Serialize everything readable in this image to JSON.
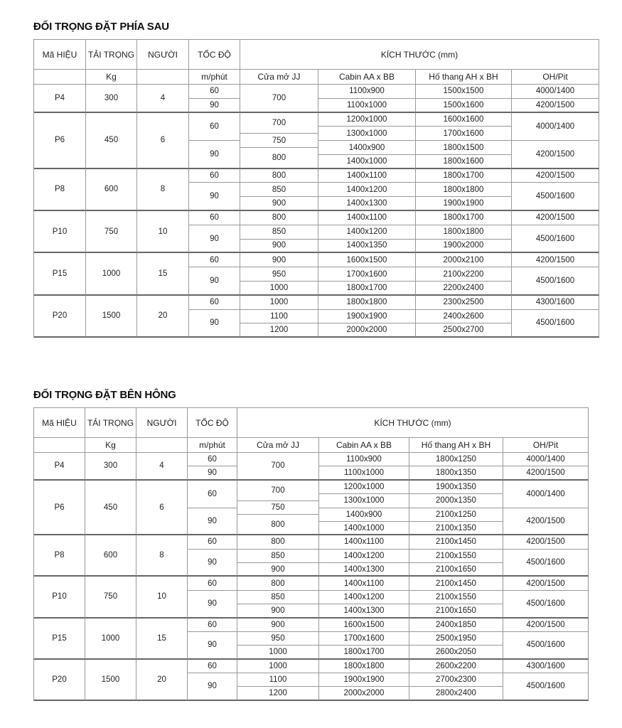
{
  "tables": [
    {
      "title": "ĐỐI TRỌNG ĐẶT PHÍA SAU",
      "headers": {
        "model": "Mã HIỆU",
        "load": "TẢI TRỌNG",
        "persons": "NGƯỜI",
        "speed": "TỐC ĐỘ",
        "dimensions": "KÍCH THƯỚC (mm)",
        "load_unit": "Kg",
        "speed_unit": "m/phút",
        "door": "Cửa mở JJ",
        "cabin": "Cabin AA x BB",
        "shaft": "Hố thang AH x BH",
        "ohpit": "OH/Pit"
      },
      "models": [
        {
          "model": "P4",
          "load": "300",
          "persons": "4",
          "speeds": [
            {
              "value": "60",
              "rows": 1
            },
            {
              "value": "90",
              "rows": 1
            }
          ],
          "doors": [
            {
              "value": "700",
              "rows": 2
            }
          ],
          "cabins": [
            "1100x900",
            "1100x1000"
          ],
          "shafts": [
            "1500x1500",
            "1500x1600"
          ],
          "ohpit": [
            {
              "value": "4000/1400",
              "rows": 1
            },
            {
              "value": "4200/1500",
              "rows": 1
            }
          ]
        },
        {
          "model": "P6",
          "load": "450",
          "persons": "6",
          "speeds": [
            {
              "value": "60",
              "rows": 2
            },
            {
              "value": "90",
              "rows": 2
            }
          ],
          "doors": [
            {
              "value": "700",
              "rows": 1.5
            },
            {
              "value": "750",
              "rows": 1
            },
            {
              "value": "800",
              "rows": 1.5
            }
          ],
          "cabins": [
            "1200x1000",
            "1300x1000",
            "1400x900",
            "1400x1000"
          ],
          "shafts": [
            "1600x1600",
            "1700x1600",
            "1800x1500",
            "1800x1600"
          ],
          "ohpit": [
            {
              "value": "4000/1400",
              "rows": 2
            },
            {
              "value": "4200/1500",
              "rows": 2
            }
          ]
        },
        {
          "model": "P8",
          "load": "600",
          "persons": "8",
          "speeds": [
            {
              "value": "60",
              "rows": 1
            },
            {
              "value": "90",
              "rows": 2
            }
          ],
          "doors": [
            {
              "value": "800",
              "rows": 1
            },
            {
              "value": "850",
              "rows": 1
            },
            {
              "value": "900",
              "rows": 1
            }
          ],
          "cabins": [
            "1400x1100",
            "1400x1200",
            "1400x1300"
          ],
          "shafts": [
            "1800x1700",
            "1800x1800",
            "1900x1900"
          ],
          "ohpit": [
            {
              "value": "4200/1500",
              "rows": 1
            },
            {
              "value": "4500/1600",
              "rows": 2
            }
          ]
        },
        {
          "model": "P10",
          "load": "750",
          "persons": "10",
          "speeds": [
            {
              "value": "60",
              "rows": 1
            },
            {
              "value": "90",
              "rows": 2
            }
          ],
          "doors": [
            {
              "value": "800",
              "rows": 1
            },
            {
              "value": "850",
              "rows": 1
            },
            {
              "value": "900",
              "rows": 1
            }
          ],
          "cabins": [
            "1400x1100",
            "1400x1200",
            "1400x1350"
          ],
          "shafts": [
            "1800x1700",
            "1800x1800",
            "1900x2000"
          ],
          "ohpit": [
            {
              "value": "4200/1500",
              "rows": 1
            },
            {
              "value": "4500/1600",
              "rows": 2
            }
          ]
        },
        {
          "model": "P15",
          "load": "1000",
          "persons": "15",
          "speeds": [
            {
              "value": "60",
              "rows": 1
            },
            {
              "value": "90",
              "rows": 2
            }
          ],
          "doors": [
            {
              "value": "900",
              "rows": 1
            },
            {
              "value": "950",
              "rows": 1
            },
            {
              "value": "1000",
              "rows": 1
            }
          ],
          "cabins": [
            "1600x1500",
            "1700x1600",
            "1800x1700"
          ],
          "shafts": [
            "2000x2100",
            "2100x2200",
            "2200x2400"
          ],
          "ohpit": [
            {
              "value": "4200/1500",
              "rows": 1
            },
            {
              "value": "4500/1600",
              "rows": 2
            }
          ]
        },
        {
          "model": "P20",
          "load": "1500",
          "persons": "20",
          "speeds": [
            {
              "value": "60",
              "rows": 1
            },
            {
              "value": "90",
              "rows": 2
            }
          ],
          "doors": [
            {
              "value": "1000",
              "rows": 1
            },
            {
              "value": "1100",
              "rows": 1
            },
            {
              "value": "1200",
              "rows": 1
            }
          ],
          "cabins": [
            "1800x1800",
            "1900x1900",
            "2000x2000"
          ],
          "shafts": [
            "2300x2500",
            "2400x2600",
            "2500x2700"
          ],
          "ohpit": [
            {
              "value": "4300/1600",
              "rows": 1
            },
            {
              "value": "4500/1600",
              "rows": 2
            }
          ]
        }
      ]
    },
    {
      "title": "ĐỐI TRỌNG ĐẶT BÊN HÔNG",
      "headers": {
        "model": "Mã HIỆU",
        "load": "TẢI TRỌNG",
        "persons": "NGƯỜI",
        "speed": "TỐC ĐỘ",
        "dimensions": "KÍCH THƯỚC (mm)",
        "load_unit": "Kg",
        "speed_unit": "m/phút",
        "door": "Cửa mở JJ",
        "cabin": "Cabin AA x BB",
        "shaft": "Hố thang AH x BH",
        "ohpit": "OH/Pit"
      },
      "models": [
        {
          "model": "P4",
          "load": "300",
          "persons": "4",
          "speeds": [
            {
              "value": "60",
              "rows": 1
            },
            {
              "value": "90",
              "rows": 1
            }
          ],
          "doors": [
            {
              "value": "700",
              "rows": 2
            }
          ],
          "cabins": [
            "1100x900",
            "1100x1000"
          ],
          "shafts": [
            "1800x1250",
            "1800x1350"
          ],
          "ohpit": [
            {
              "value": "4000/1400",
              "rows": 1
            },
            {
              "value": "4200/1500",
              "rows": 1
            }
          ]
        },
        {
          "model": "P6",
          "load": "450",
          "persons": "6",
          "speeds": [
            {
              "value": "60",
              "rows": 2
            },
            {
              "value": "90",
              "rows": 2
            }
          ],
          "doors": [
            {
              "value": "700",
              "rows": 1.5
            },
            {
              "value": "750",
              "rows": 1
            },
            {
              "value": "800",
              "rows": 1.5
            }
          ],
          "cabins": [
            "1200x1000",
            "1300x1000",
            "1400x900",
            "1400x1000"
          ],
          "shafts": [
            "1900x1350",
            "2000x1350",
            "2100x1250",
            "2100x1350"
          ],
          "ohpit": [
            {
              "value": "4000/1400",
              "rows": 2
            },
            {
              "value": "4200/1500",
              "rows": 2
            }
          ]
        },
        {
          "model": "P8",
          "load": "600",
          "persons": "8",
          "speeds": [
            {
              "value": "60",
              "rows": 1
            },
            {
              "value": "90",
              "rows": 2
            }
          ],
          "doors": [
            {
              "value": "800",
              "rows": 1
            },
            {
              "value": "850",
              "rows": 1
            },
            {
              "value": "900",
              "rows": 1
            }
          ],
          "cabins": [
            "1400x1100",
            "1400x1200",
            "1400x1300"
          ],
          "shafts": [
            "2100x1450",
            "2100x1550",
            "2100x1650"
          ],
          "ohpit": [
            {
              "value": "4200/1500",
              "rows": 1
            },
            {
              "value": "4500/1600",
              "rows": 2
            }
          ]
        },
        {
          "model": "P10",
          "load": "750",
          "persons": "10",
          "speeds": [
            {
              "value": "60",
              "rows": 1
            },
            {
              "value": "90",
              "rows": 2
            }
          ],
          "doors": [
            {
              "value": "800",
              "rows": 1
            },
            {
              "value": "850",
              "rows": 1
            },
            {
              "value": "900",
              "rows": 1
            }
          ],
          "cabins": [
            "1400x1100",
            "1400x1200",
            "1400x1300"
          ],
          "shafts": [
            "2100x1450",
            "2100x1550",
            "2100x1650"
          ],
          "ohpit": [
            {
              "value": "4200/1500",
              "rows": 1
            },
            {
              "value": "4500/1600",
              "rows": 2
            }
          ]
        },
        {
          "model": "P15",
          "load": "1000",
          "persons": "15",
          "speeds": [
            {
              "value": "60",
              "rows": 1
            },
            {
              "value": "90",
              "rows": 2
            }
          ],
          "doors": [
            {
              "value": "900",
              "rows": 1
            },
            {
              "value": "950",
              "rows": 1
            },
            {
              "value": "1000",
              "rows": 1
            }
          ],
          "cabins": [
            "1600x1500",
            "1700x1600",
            "1800x1700"
          ],
          "shafts": [
            "2400x1850",
            "2500x1950",
            "2600x2050"
          ],
          "ohpit": [
            {
              "value": "4200/1500",
              "rows": 1
            },
            {
              "value": "4500/1600",
              "rows": 2
            }
          ]
        },
        {
          "model": "P20",
          "load": "1500",
          "persons": "20",
          "speeds": [
            {
              "value": "60",
              "rows": 1
            },
            {
              "value": "90",
              "rows": 2
            }
          ],
          "doors": [
            {
              "value": "1000",
              "rows": 1
            },
            {
              "value": "1100",
              "rows": 1
            },
            {
              "value": "1200",
              "rows": 1
            }
          ],
          "cabins": [
            "1800x1800",
            "1900x1900",
            "2000x2000"
          ],
          "shafts": [
            "2600x2200",
            "2700x2300",
            "2800x2400"
          ],
          "ohpit": [
            {
              "value": "4300/1600",
              "rows": 1
            },
            {
              "value": "4500/1600",
              "rows": 2
            }
          ]
        }
      ]
    }
  ]
}
